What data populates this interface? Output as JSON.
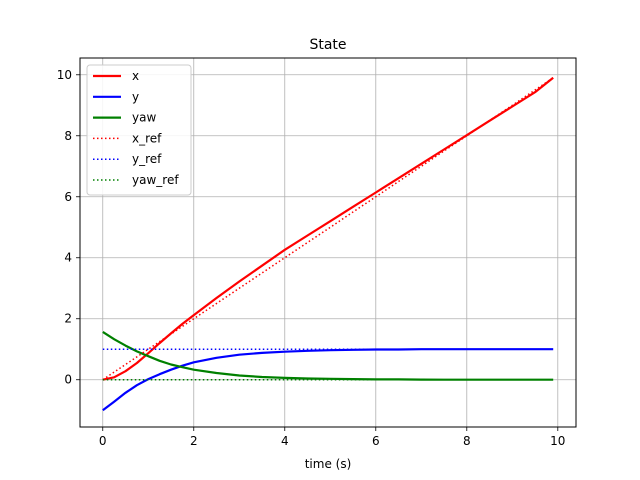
{
  "chart_data": {
    "type": "line",
    "title": "State",
    "xlabel": "time (s)",
    "ylabel": "",
    "xlim": [
      -0.5,
      10.4
    ],
    "ylim": [
      -1.55,
      10.55
    ],
    "xticks": [
      0,
      2,
      4,
      6,
      8,
      10
    ],
    "yticks": [
      0,
      2,
      4,
      6,
      8,
      10
    ],
    "grid": true,
    "legend_position": "top-left",
    "x": [
      0,
      0.25,
      0.5,
      0.75,
      1,
      1.25,
      1.5,
      1.75,
      2,
      2.5,
      3,
      3.5,
      4,
      4.5,
      5,
      5.5,
      6,
      6.5,
      7,
      7.5,
      8,
      8.5,
      9,
      9.5,
      9.9
    ],
    "series": [
      {
        "name": "x",
        "color": "#ff0000",
        "style": "solid",
        "values": [
          0,
          0.08,
          0.28,
          0.55,
          0.87,
          1.2,
          1.52,
          1.83,
          2.12,
          2.68,
          3.22,
          3.74,
          4.26,
          4.73,
          5.2,
          5.67,
          6.14,
          6.61,
          7.08,
          7.55,
          8.02,
          8.49,
          8.96,
          9.43,
          9.9
        ]
      },
      {
        "name": "y",
        "color": "#0000ff",
        "style": "solid",
        "values": [
          -1.0,
          -0.72,
          -0.43,
          -0.18,
          0.02,
          0.18,
          0.33,
          0.46,
          0.57,
          0.72,
          0.82,
          0.88,
          0.92,
          0.95,
          0.97,
          0.98,
          0.99,
          0.99,
          1.0,
          1.0,
          1.0,
          1.0,
          1.0,
          1.0,
          1.0
        ]
      },
      {
        "name": "yaw",
        "color": "#008000",
        "style": "solid",
        "values": [
          1.57,
          1.33,
          1.12,
          0.93,
          0.77,
          0.62,
          0.5,
          0.41,
          0.33,
          0.22,
          0.14,
          0.09,
          0.06,
          0.04,
          0.03,
          0.02,
          0.01,
          0.01,
          0.005,
          0.0,
          0.0,
          0.0,
          0.0,
          0.0,
          0.0
        ]
      },
      {
        "name": "x_ref",
        "color": "#ff0000",
        "style": "dotted",
        "values": [
          0,
          0.25,
          0.5,
          0.75,
          1.0,
          1.25,
          1.5,
          1.75,
          2.0,
          2.5,
          3.0,
          3.5,
          4.0,
          4.5,
          5.0,
          5.5,
          6.0,
          6.5,
          7.0,
          7.5,
          8.0,
          8.5,
          9.0,
          9.5,
          9.9
        ]
      },
      {
        "name": "y_ref",
        "color": "#0000ff",
        "style": "dotted",
        "values": [
          1,
          1,
          1,
          1,
          1,
          1,
          1,
          1,
          1,
          1,
          1,
          1,
          1,
          1,
          1,
          1,
          1,
          1,
          1,
          1,
          1,
          1,
          1,
          1,
          1
        ]
      },
      {
        "name": "yaw_ref",
        "color": "#008000",
        "style": "dotted",
        "values": [
          0,
          0,
          0,
          0,
          0,
          0,
          0,
          0,
          0,
          0,
          0,
          0,
          0,
          0,
          0,
          0,
          0,
          0,
          0,
          0,
          0,
          0,
          0,
          0,
          0
        ]
      }
    ]
  }
}
